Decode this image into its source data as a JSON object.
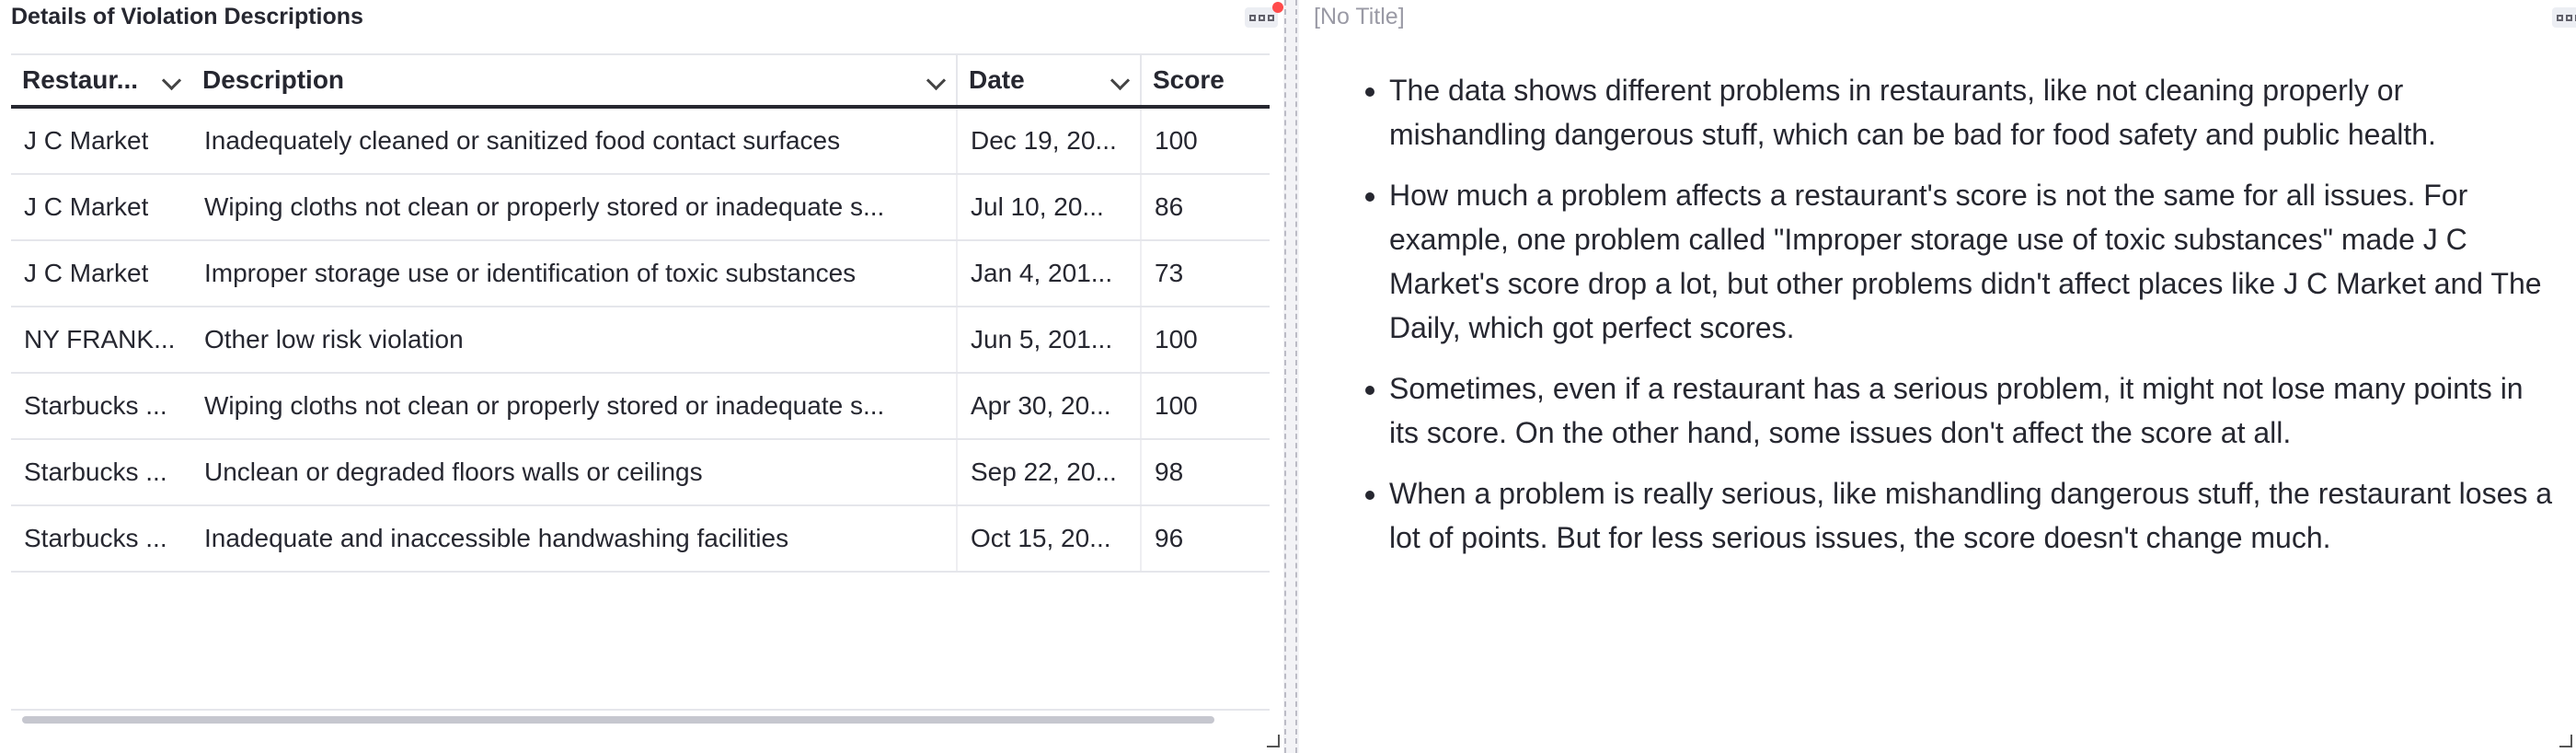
{
  "left_panel": {
    "title": "Details of Violation Descriptions"
  },
  "right_panel": {
    "title": "[No Title]"
  },
  "table": {
    "columns": [
      "Restaur...",
      "Description",
      "Date",
      "Score"
    ],
    "rows": [
      [
        "J C Market",
        "Inadequately cleaned or sanitized food contact surfaces",
        "Dec 19, 20...",
        "100"
      ],
      [
        "J C Market",
        "Wiping cloths not clean or properly stored or inadequate s...",
        "Jul 10, 20...",
        "86"
      ],
      [
        "J C Market",
        "Improper storage use or identification of toxic substances",
        "Jan 4, 201...",
        "73"
      ],
      [
        "NY FRANK...",
        "Other low risk violation",
        "Jun 5, 201...",
        "100"
      ],
      [
        "Starbucks ...",
        "Wiping cloths not clean or properly stored or inadequate s...",
        "Apr 30, 20...",
        "100"
      ],
      [
        "Starbucks ...",
        "Unclean or degraded floors walls or ceilings",
        "Sep 22, 20...",
        "98"
      ],
      [
        "Starbucks ...",
        "Inadequate and inaccessible handwashing facilities",
        "Oct 15, 20...",
        "96"
      ]
    ]
  },
  "notes": [
    "The data shows different problems in restaurants, like not cleaning properly or mishandling dangerous stuff, which can be bad for food safety and public health.",
    "How much a problem affects a restaurant's score is not the same for all issues. For example, one problem called \"Improper storage use of toxic substances\" made J C Market's score drop a lot, but other problems didn't affect places like J C Market and The Daily, which got perfect scores.",
    "Sometimes, even if a restaurant has a serious problem, it might not lose many points in its score. On the other hand, some issues don't affect the score at all.",
    "When a problem is really serious, like mishandling dangerous stuff, the restaurant loses a lot of points. But for less serious issues, the score doesn't change much."
  ],
  "icons": {
    "panel_menu": "panel-menu-icon",
    "sort": "chevron-down-icon",
    "resize": "resize-handle-icon"
  },
  "colors": {
    "notification_dot": "#ff4b4b",
    "divider": "#bcbcc6"
  }
}
